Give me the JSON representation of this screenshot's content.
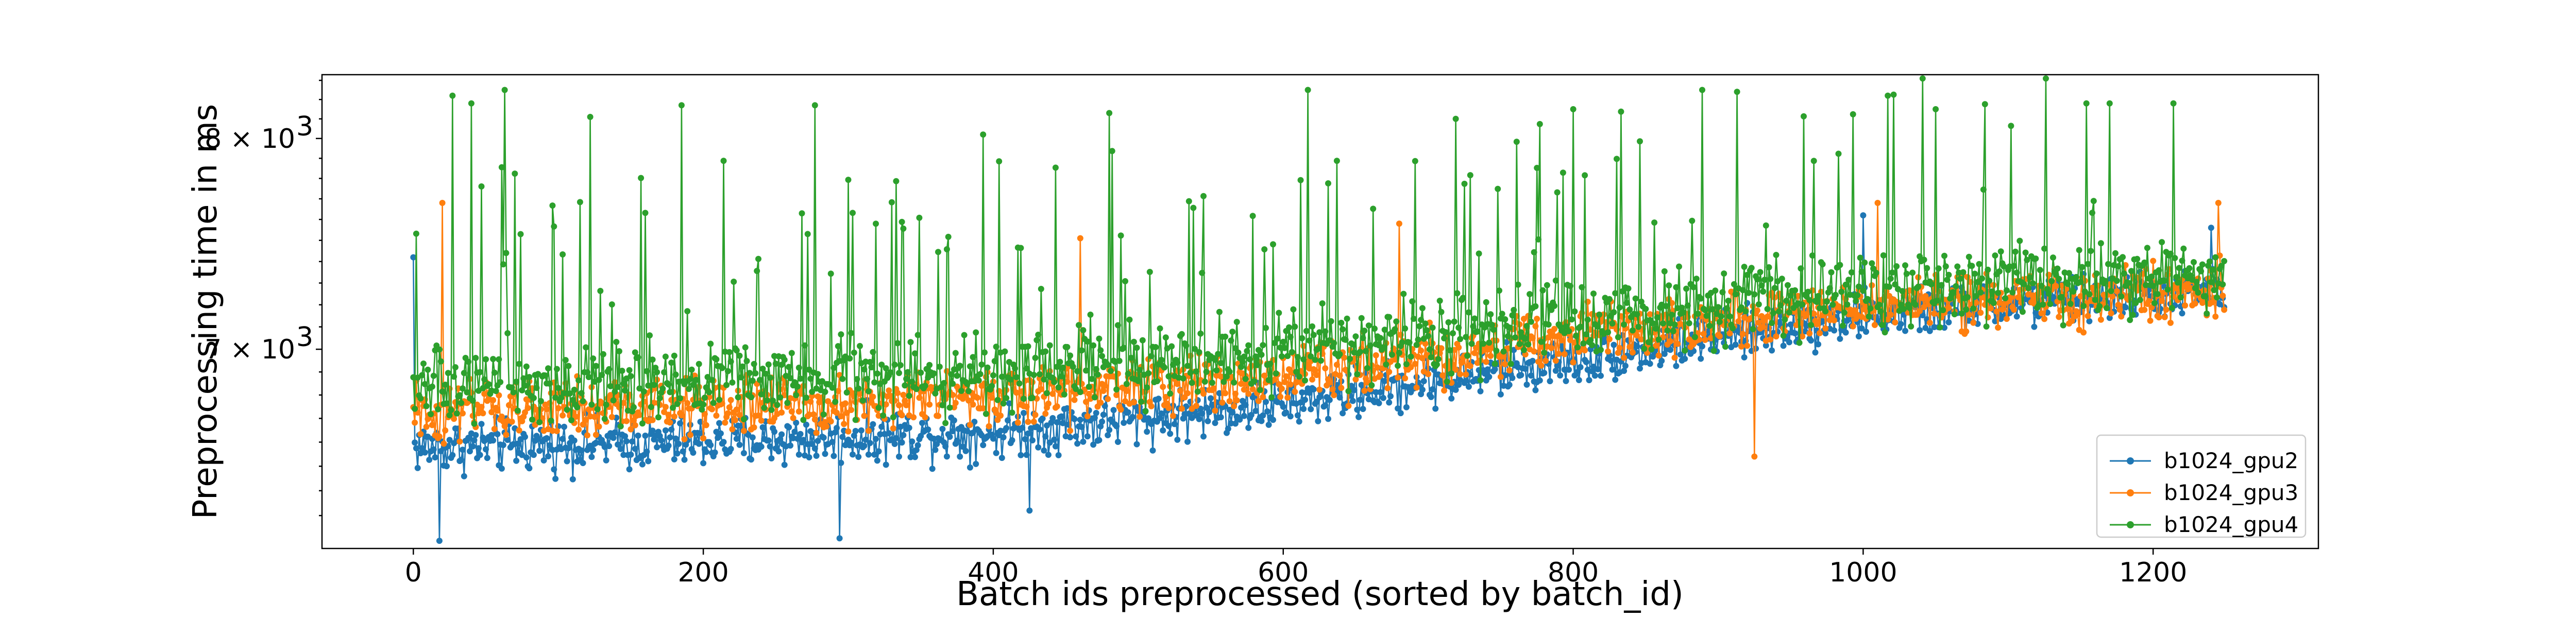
{
  "chart_data": {
    "type": "line",
    "title": "",
    "xlabel": "Batch ids preprocessed (sorted by batch_id)",
    "ylabel": "Preprocessing time in ms",
    "y_scale": "log",
    "xlim": [
      -63,
      1314
    ],
    "ylim": [
      6170,
      8330
    ],
    "x_ticks": [
      0,
      200,
      400,
      600,
      800,
      1000,
      1200
    ],
    "x_tick_labels": [
      "0",
      "200",
      "400",
      "600",
      "800",
      "1000",
      "1200"
    ],
    "y_ticks": [
      7000,
      8000
    ],
    "y_tick_labels": [
      "7 × 10",
      "8 × 10"
    ],
    "y_tick_exponent": "3",
    "grid": false,
    "legend_position": "lower-right",
    "n_points_per_series": 1250,
    "x_start": 0,
    "x_step": 1,
    "series": [
      {
        "name": "b1024_gpu2",
        "color": "#1f77b4",
        "marker": "circle",
        "trend": [
          [
            0,
            6580
          ],
          [
            200,
            6600
          ],
          [
            400,
            6640
          ],
          [
            600,
            6760
          ],
          [
            800,
            6950
          ],
          [
            1000,
            7150
          ],
          [
            1200,
            7250
          ],
          [
            1249,
            7260
          ]
        ],
        "spread": 160,
        "spikes": [
          [
            0,
            7420
          ],
          [
            18,
            6200
          ],
          [
            294,
            6210
          ],
          [
            425,
            6320
          ],
          [
            1000,
            7620
          ],
          [
            1240,
            7560
          ]
        ]
      },
      {
        "name": "b1024_gpu3",
        "color": "#ff7f0e",
        "marker": "circle",
        "trend": [
          [
            0,
            6720
          ],
          [
            200,
            6750
          ],
          [
            400,
            6790
          ],
          [
            600,
            6880
          ],
          [
            800,
            7050
          ],
          [
            1000,
            7200
          ],
          [
            1200,
            7250
          ],
          [
            1249,
            7260
          ]
        ],
        "spread": 190,
        "spikes": [
          [
            20,
            7680
          ],
          [
            460,
            7510
          ],
          [
            680,
            7580
          ],
          [
            925,
            6540
          ],
          [
            1010,
            7680
          ],
          [
            1245,
            7680
          ]
        ]
      },
      {
        "name": "b1024_gpu4",
        "color": "#2ca02c",
        "marker": "circle",
        "trend": [
          [
            0,
            6830
          ],
          [
            200,
            6860
          ],
          [
            400,
            6890
          ],
          [
            600,
            6980
          ],
          [
            800,
            7120
          ],
          [
            1000,
            7270
          ],
          [
            1200,
            7320
          ],
          [
            1249,
            7330
          ]
        ],
        "spread": 260,
        "spikes": [
          [
            27,
            8220
          ],
          [
            40,
            8180
          ],
          [
            63,
            8250
          ],
          [
            122,
            8110
          ],
          [
            185,
            8170
          ],
          [
            277,
            8170
          ],
          [
            393,
            8020
          ],
          [
            480,
            8130
          ],
          [
            617,
            8250
          ],
          [
            719,
            8100
          ],
          [
            800,
            8150
          ],
          [
            889,
            8250
          ],
          [
            913,
            8240
          ],
          [
            1017,
            8220
          ],
          [
            1050,
            8150
          ],
          [
            1170,
            8180
          ],
          [
            1214,
            8180
          ]
        ]
      }
    ]
  }
}
